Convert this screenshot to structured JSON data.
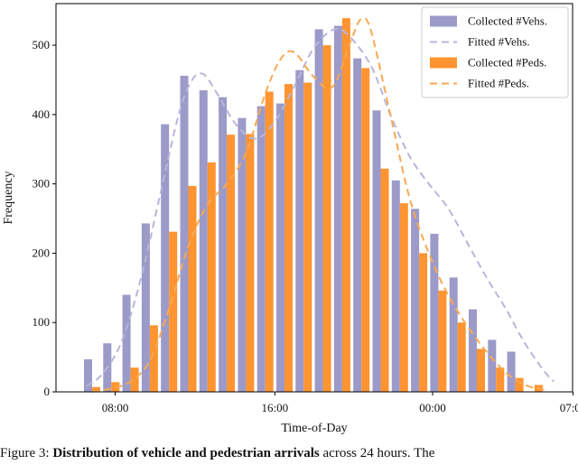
{
  "chart_data": {
    "type": "bar",
    "xlabel": "Time-of-Day",
    "ylabel": "Frequency",
    "ylim": [
      0,
      560
    ],
    "yticks": [
      0,
      100,
      200,
      300,
      400,
      500
    ],
    "xtick_labels": [
      {
        "label": "08:00",
        "bin": 1.2
      },
      {
        "label": "16:00",
        "bin": 9.5
      },
      {
        "label": "00:00",
        "bin": 17.7
      },
      {
        "label": "07:00",
        "bin": 25.0
      }
    ],
    "bins": 25,
    "legend_position": "top-right",
    "series": [
      {
        "name": "Collected #Vehs.",
        "kind": "bar",
        "color": "#9c9ac8",
        "values": [
          47,
          70,
          140,
          243,
          386,
          456,
          435,
          425,
          395,
          412,
          416,
          464,
          523,
          528,
          481,
          406,
          305,
          264,
          228,
          165,
          119,
          75,
          58,
          0,
          0
        ]
      },
      {
        "name": "Collected #Peds.",
        "kind": "bar",
        "color": "#ff9430",
        "values": [
          7,
          14,
          35,
          96,
          231,
          297,
          331,
          371,
          372,
          433,
          444,
          446,
          500,
          539,
          467,
          322,
          272,
          200,
          146,
          100,
          62,
          35,
          20,
          10,
          0
        ]
      },
      {
        "name": "Fitted #Vehs.",
        "kind": "line",
        "style": "dashed",
        "color": "#b7b6da",
        "x": [
          -0.3,
          0.5,
          1.5,
          2.5,
          3.5,
          4.5,
          5.2,
          5.8,
          6.5,
          7.5,
          8.5,
          9.5,
          10.5,
          11.5,
          12.5,
          13.3,
          14.5,
          15.5,
          16.5,
          17.5,
          18.5,
          19.5,
          20.5,
          21.5,
          22.5,
          23.5,
          24.0
        ],
        "y": [
          8,
          25,
          70,
          160,
          280,
          400,
          450,
          458,
          430,
          385,
          365,
          390,
          440,
          495,
          522,
          515,
          470,
          400,
          340,
          300,
          265,
          215,
          165,
          120,
          70,
          30,
          15
        ]
      },
      {
        "name": "Fitted #Peds.",
        "kind": "line",
        "style": "dashed",
        "color": "#f8a952",
        "x": [
          0.0,
          1.0,
          2.0,
          3.0,
          4.0,
          5.0,
          6.0,
          7.0,
          8.0,
          9.0,
          9.8,
          10.5,
          11.5,
          12.5,
          13.5,
          14.0,
          14.5,
          15.5,
          16.5,
          17.5,
          18.5,
          19.5,
          20.5,
          21.5,
          22.5,
          23.5
        ],
        "y": [
          0,
          5,
          15,
          45,
          120,
          210,
          270,
          300,
          345,
          430,
          480,
          490,
          455,
          440,
          510,
          538,
          520,
          400,
          280,
          200,
          140,
          95,
          58,
          28,
          10,
          3
        ]
      }
    ],
    "legend": [
      "Collected #Vehs.",
      "Fitted #Vehs.",
      "Collected #Peds.",
      "Fitted #Peds."
    ]
  },
  "caption": {
    "prefix": "Figure 3:",
    "bold": "Distribution of vehicle and pedestrian arrivals",
    "rest": " across 24 hours. The"
  }
}
